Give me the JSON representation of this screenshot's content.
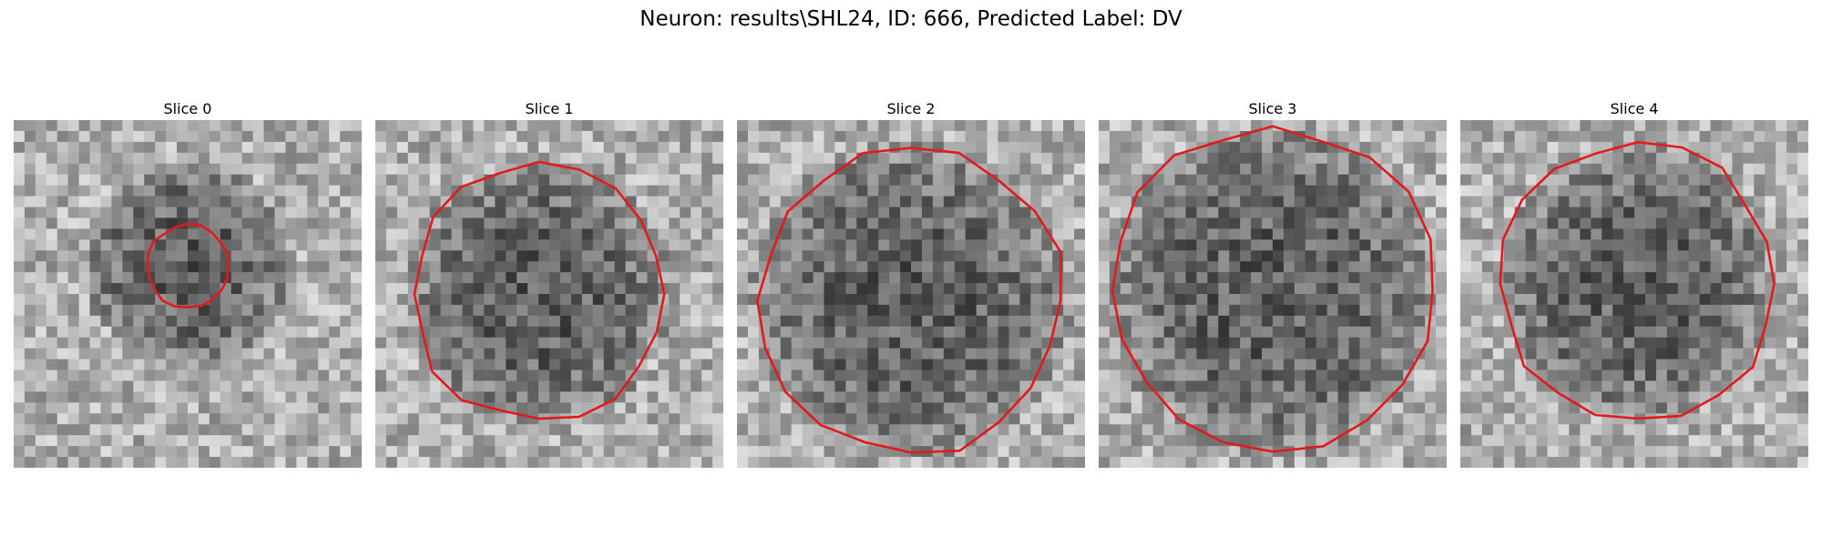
{
  "figure": {
    "title": "Neuron: results\\SHL24, ID: 666, Predicted Label: DV"
  },
  "colors": {
    "contour": "#e31a1c",
    "background": "#ffffff"
  },
  "panels": [
    {
      "title": "Slice 0",
      "contour_radius_frac": 0.12,
      "center": [
        0.5,
        0.42
      ],
      "dark_blob": 0.3,
      "seed": 11
    },
    {
      "title": "Slice 1",
      "contour_radius_frac": 0.37,
      "center": [
        0.47,
        0.5
      ],
      "dark_blob": 0.38,
      "seed": 23
    },
    {
      "title": "Slice 2",
      "contour_radius_frac": 0.44,
      "center": [
        0.5,
        0.52
      ],
      "dark_blob": 0.46,
      "seed": 37
    },
    {
      "title": "Slice 3",
      "contour_radius_frac": 0.47,
      "center": [
        0.5,
        0.49
      ],
      "dark_blob": 0.48,
      "seed": 41
    },
    {
      "title": "Slice 4",
      "contour_radius_frac": 0.4,
      "center": [
        0.51,
        0.47
      ],
      "dark_blob": 0.4,
      "seed": 53
    }
  ]
}
